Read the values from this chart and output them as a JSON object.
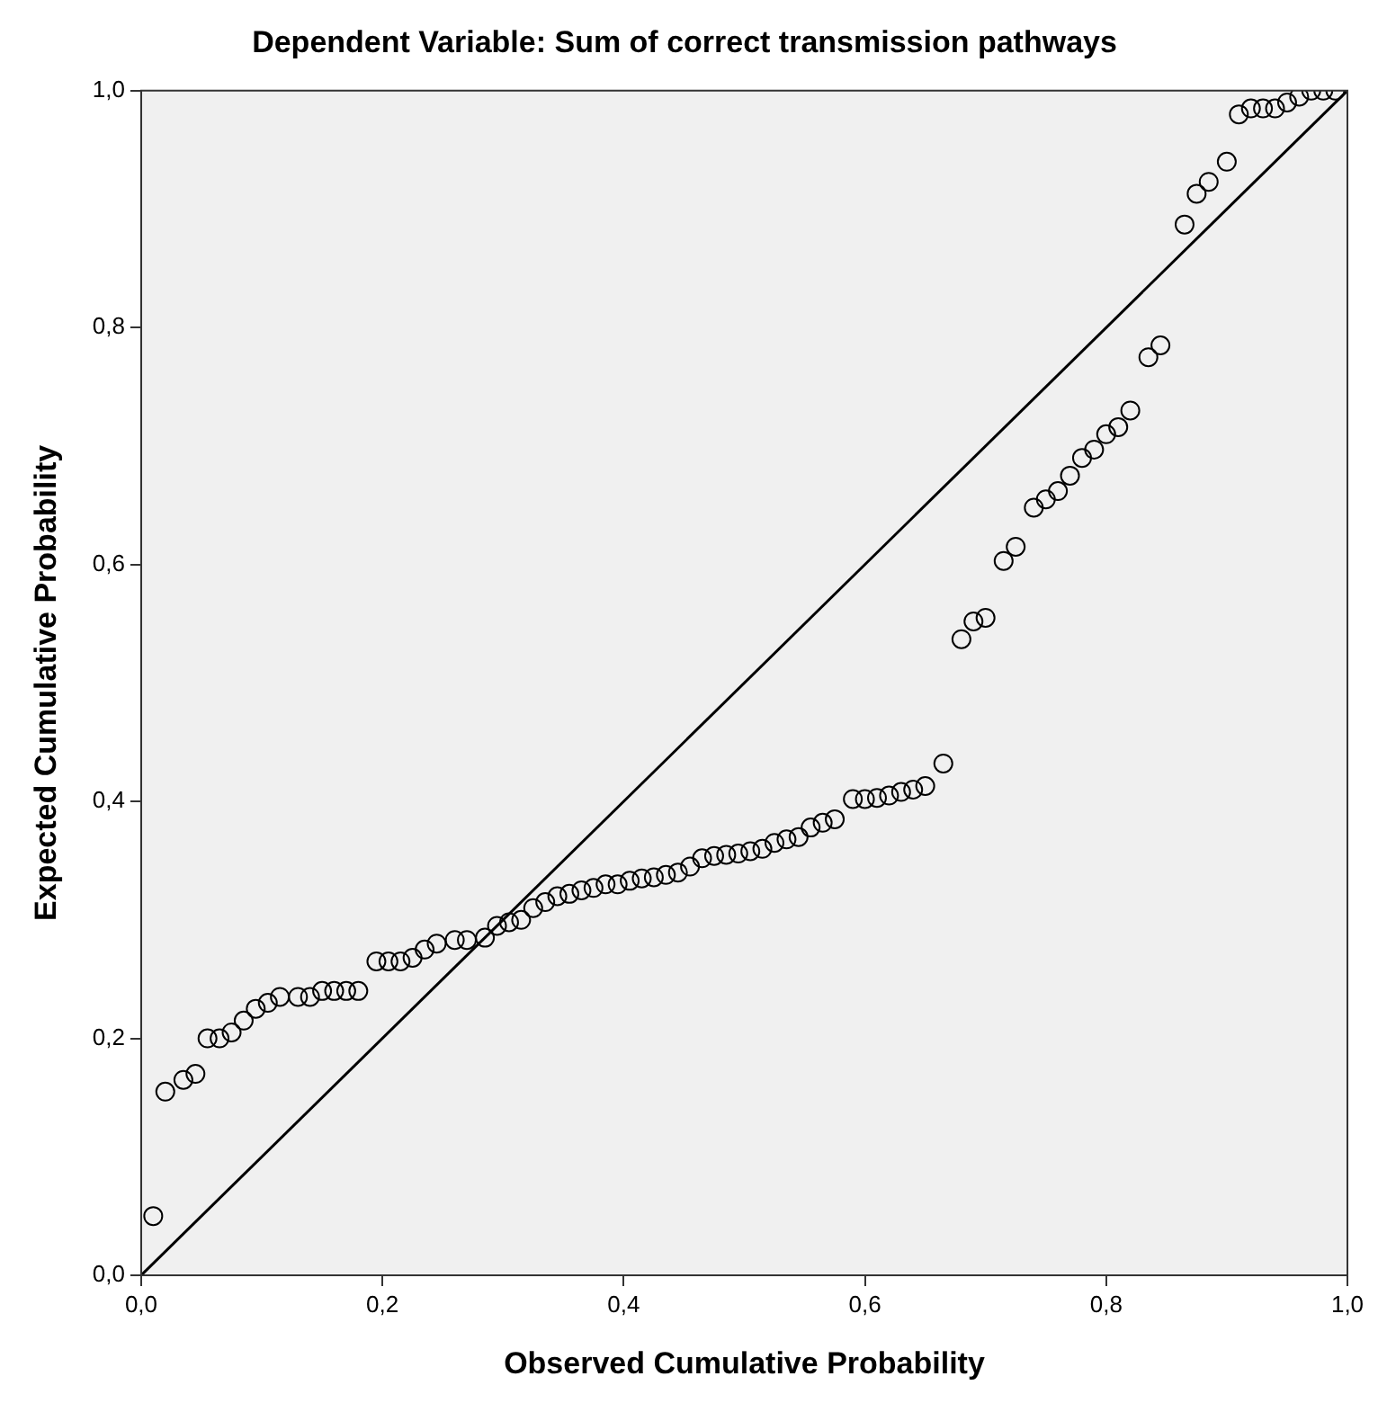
{
  "chart_data": {
    "type": "scatter",
    "title": "Dependent Variable: Sum of correct transmission pathways",
    "xlabel": "Observed Cumulative Probability",
    "ylabel": "Expected Cumulative Probability",
    "xlim": [
      0,
      1
    ],
    "ylim": [
      0,
      1
    ],
    "xticks": [
      {
        "value": 0,
        "label": "0,0"
      },
      {
        "value": 0.2,
        "label": "0,2"
      },
      {
        "value": 0.4,
        "label": "0,4"
      },
      {
        "value": 0.6,
        "label": "0,6"
      },
      {
        "value": 0.8,
        "label": "0,8"
      },
      {
        "value": 1,
        "label": "1,0"
      }
    ],
    "yticks": [
      {
        "value": 0,
        "label": "0,0"
      },
      {
        "value": 0.2,
        "label": "0,2"
      },
      {
        "value": 0.4,
        "label": "0,4"
      },
      {
        "value": 0.6,
        "label": "0,6"
      },
      {
        "value": 0.8,
        "label": "0,8"
      },
      {
        "value": 1,
        "label": "1,0"
      }
    ],
    "grid": false,
    "legend": false,
    "marker": "circle",
    "series": [
      {
        "color": "#000000",
        "x": [
          0.01,
          0.02,
          0.035,
          0.045,
          0.055,
          0.065,
          0.075,
          0.085,
          0.095,
          0.105,
          0.115,
          0.13,
          0.14,
          0.15,
          0.16,
          0.17,
          0.18,
          0.195,
          0.205,
          0.215,
          0.225,
          0.235,
          0.245,
          0.26,
          0.27,
          0.285,
          0.295,
          0.305,
          0.315,
          0.325,
          0.335,
          0.345,
          0.355,
          0.365,
          0.375,
          0.385,
          0.395,
          0.405,
          0.415,
          0.425,
          0.435,
          0.445,
          0.455,
          0.465,
          0.475,
          0.485,
          0.495,
          0.505,
          0.515,
          0.525,
          0.535,
          0.545,
          0.555,
          0.565,
          0.575,
          0.59,
          0.6,
          0.61,
          0.62,
          0.63,
          0.64,
          0.65,
          0.665,
          0.68,
          0.69,
          0.7,
          0.715,
          0.725,
          0.74,
          0.75,
          0.76,
          0.77,
          0.78,
          0.79,
          0.8,
          0.81,
          0.82,
          0.835,
          0.845,
          0.865,
          0.875,
          0.885,
          0.9,
          0.91,
          0.92,
          0.93,
          0.94,
          0.95,
          0.96,
          0.97,
          0.98,
          0.99
        ],
        "values": [
          0.05,
          0.155,
          0.165,
          0.17,
          0.2,
          0.2,
          0.205,
          0.215,
          0.225,
          0.23,
          0.235,
          0.235,
          0.235,
          0.24,
          0.24,
          0.24,
          0.24,
          0.265,
          0.265,
          0.265,
          0.268,
          0.275,
          0.28,
          0.283,
          0.283,
          0.285,
          0.295,
          0.298,
          0.3,
          0.31,
          0.315,
          0.32,
          0.322,
          0.325,
          0.327,
          0.33,
          0.33,
          0.333,
          0.335,
          0.336,
          0.338,
          0.34,
          0.345,
          0.352,
          0.354,
          0.355,
          0.356,
          0.358,
          0.36,
          0.365,
          0.368,
          0.37,
          0.378,
          0.382,
          0.385,
          0.402,
          0.402,
          0.403,
          0.405,
          0.408,
          0.41,
          0.413,
          0.432,
          0.537,
          0.552,
          0.555,
          0.603,
          0.615,
          0.648,
          0.655,
          0.662,
          0.675,
          0.69,
          0.697,
          0.71,
          0.716,
          0.73,
          0.775,
          0.785,
          0.887,
          0.913,
          0.923,
          0.94,
          0.98,
          0.985,
          0.985,
          0.985,
          0.99,
          0.995,
          1.0,
          1.0,
          1.0
        ]
      },
      {
        "type": "line",
        "color": "#000000",
        "x": [
          0,
          1
        ],
        "values": [
          0,
          1
        ],
        "marker": "none"
      }
    ]
  }
}
